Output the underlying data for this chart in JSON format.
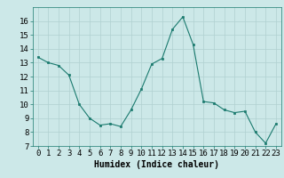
{
  "x": [
    0,
    1,
    2,
    3,
    4,
    5,
    6,
    7,
    8,
    9,
    10,
    11,
    12,
    13,
    14,
    15,
    16,
    17,
    18,
    19,
    20,
    21,
    22,
    23
  ],
  "y": [
    13.4,
    13.0,
    12.8,
    12.1,
    10.0,
    9.0,
    8.5,
    8.6,
    8.4,
    9.6,
    11.1,
    12.9,
    13.3,
    15.4,
    16.3,
    14.3,
    10.2,
    10.1,
    9.6,
    9.4,
    9.5,
    8.0,
    7.2,
    8.6
  ],
  "line_color": "#1a7a6e",
  "marker_color": "#1a7a6e",
  "bg_color": "#cce8e8",
  "grid_color": "#b0d0d0",
  "xlabel": "Humidex (Indice chaleur)",
  "ylim": [
    7,
    17
  ],
  "xlim": [
    -0.5,
    23.5
  ],
  "yticks": [
    7,
    8,
    9,
    10,
    11,
    12,
    13,
    14,
    15,
    16
  ],
  "xticks": [
    0,
    1,
    2,
    3,
    4,
    5,
    6,
    7,
    8,
    9,
    10,
    11,
    12,
    13,
    14,
    15,
    16,
    17,
    18,
    19,
    20,
    21,
    22,
    23
  ],
  "xtick_labels": [
    "0",
    "1",
    "2",
    "3",
    "4",
    "5",
    "6",
    "7",
    "8",
    "9",
    "10",
    "11",
    "12",
    "13",
    "14",
    "15",
    "16",
    "17",
    "18",
    "19",
    "20",
    "21",
    "22",
    "23"
  ],
  "xlabel_fontsize": 7,
  "tick_fontsize": 6.5
}
